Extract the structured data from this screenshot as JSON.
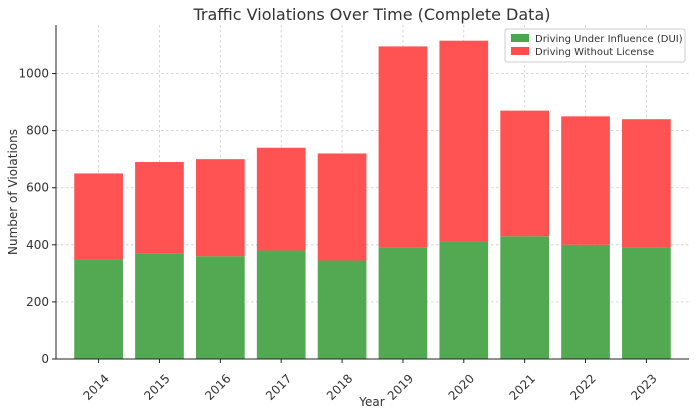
{
  "chart_data": {
    "type": "bar",
    "stacked": true,
    "title": "Traffic Violations Over Time (Complete Data)",
    "xlabel": "Year",
    "ylabel": "Number of Violations",
    "categories": [
      "2014",
      "2015",
      "2016",
      "2017",
      "2018",
      "2019",
      "2020",
      "2021",
      "2022",
      "2023"
    ],
    "series": [
      {
        "name": "Driving Under Influence (DUI)",
        "color": "#4ca64c",
        "values": [
          350,
          370,
          360,
          380,
          345,
          390,
          410,
          430,
          400,
          390
        ]
      },
      {
        "name": "Driving Without License",
        "color": "#ff4c4c",
        "values": [
          300,
          320,
          340,
          360,
          375,
          705,
          705,
          440,
          450,
          450
        ]
      }
    ],
    "ylim": [
      0,
      1170
    ],
    "yticks": [
      0,
      200,
      400,
      600,
      800,
      1000
    ],
    "grid": true,
    "legend_position": "top-right"
  }
}
